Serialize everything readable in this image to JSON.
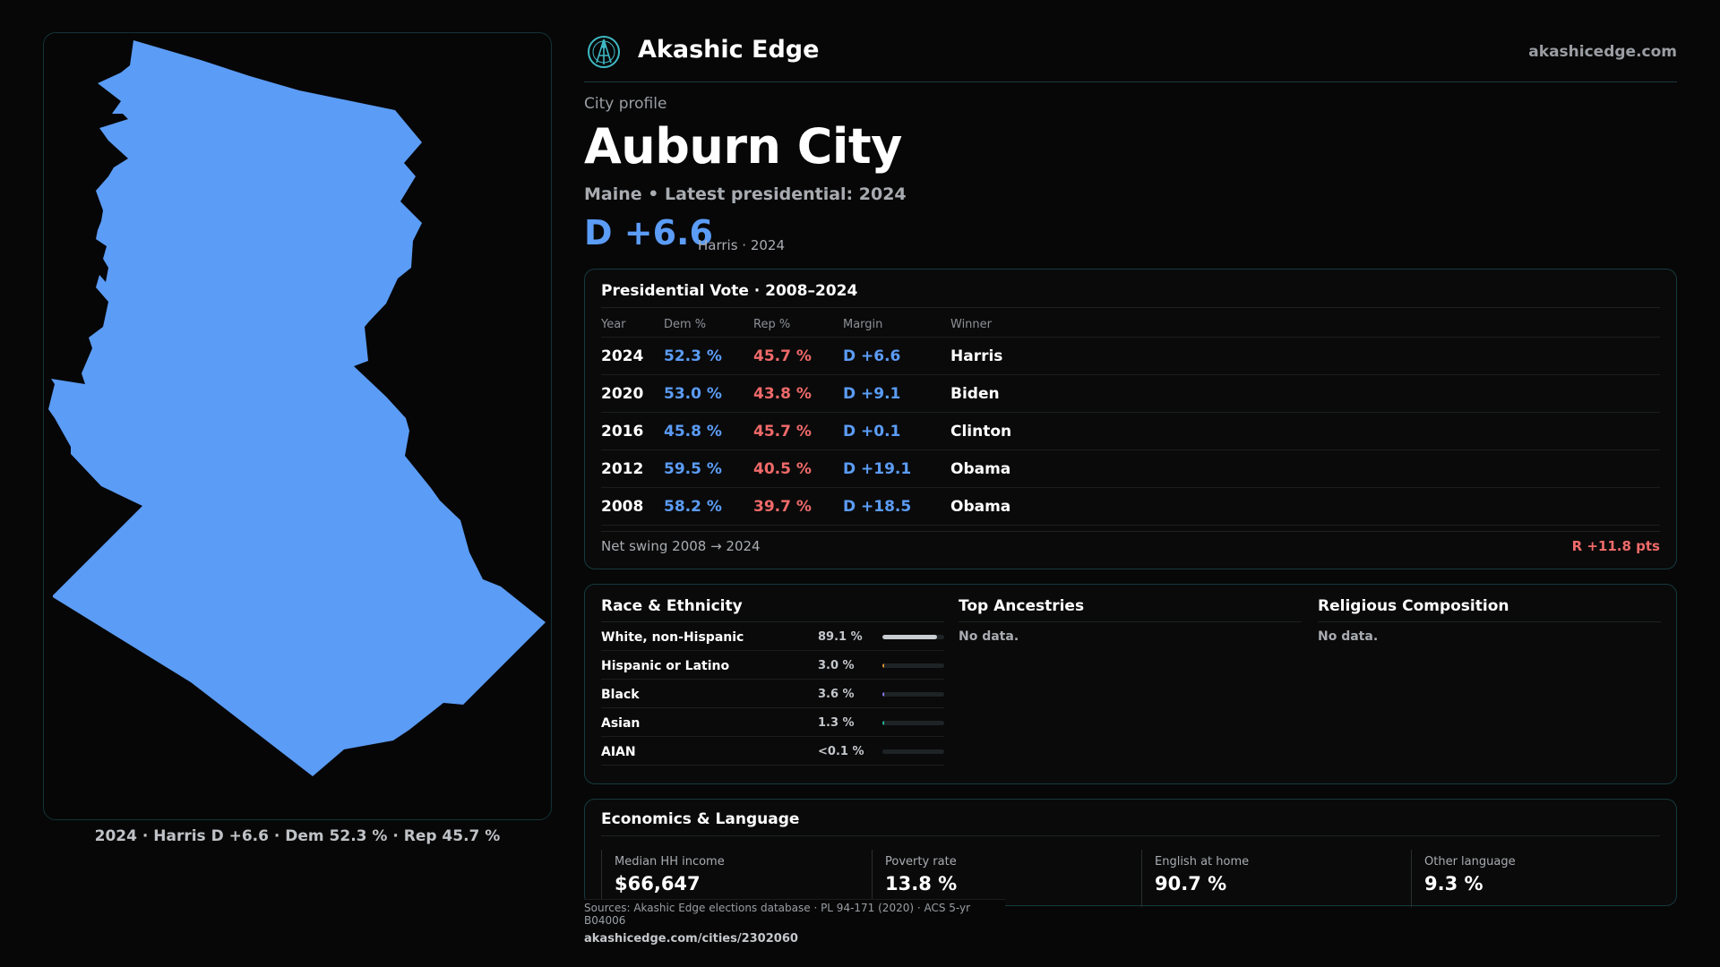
{
  "brand": {
    "name": "Akashic Edge",
    "domain": "akashicedge.com"
  },
  "map": {
    "fill_color": "#5b9cf6",
    "caption": "2024 · Harris D +6.6 · Dem 52.3 % · Rep 45.7 %"
  },
  "city": {
    "kicker": "City profile",
    "name": "Auburn City",
    "subtitle": "Maine • Latest presidential: 2024",
    "margin": "D +6.6",
    "margin_note": "Harris · 2024"
  },
  "presidential": {
    "title": "Presidential Vote · 2008–2024",
    "headers": {
      "year": "Year",
      "dem": "Dem %",
      "rep": "Rep %",
      "margin": "Margin",
      "winner": "Winner"
    },
    "rows": [
      {
        "year": "2024",
        "dem": "52.3 %",
        "rep": "45.7 %",
        "margin": "D +6.6",
        "winner": "Harris"
      },
      {
        "year": "2020",
        "dem": "53.0 %",
        "rep": "43.8 %",
        "margin": "D +9.1",
        "winner": "Biden"
      },
      {
        "year": "2016",
        "dem": "45.8 %",
        "rep": "45.7 %",
        "margin": "D +0.1",
        "winner": "Clinton"
      },
      {
        "year": "2012",
        "dem": "59.5 %",
        "rep": "40.5 %",
        "margin": "D +19.1",
        "winner": "Obama"
      },
      {
        "year": "2008",
        "dem": "58.2 %",
        "rep": "39.7 %",
        "margin": "D +18.5",
        "winner": "Obama"
      }
    ],
    "swing_label": "Net swing 2008 → 2024",
    "swing_value": "R +11.8 pts"
  },
  "race": {
    "title": "Race & Ethnicity",
    "rows": [
      {
        "name": "White, non-Hispanic",
        "value": "89.1 %",
        "share": 0.891,
        "color": "#c9ccd1"
      },
      {
        "name": "Hispanic or Latino",
        "value": "3.0 %",
        "share": 0.03,
        "color": "#e0962e"
      },
      {
        "name": "Black",
        "value": "3.6 %",
        "share": 0.036,
        "color": "#8a7cf0"
      },
      {
        "name": "Asian",
        "value": "1.3 %",
        "share": 0.013,
        "color": "#2bb7a3"
      },
      {
        "name": "AIAN",
        "value": "<0.1 %",
        "share": 0.0,
        "color": "#c9ccd1"
      }
    ]
  },
  "ancestries": {
    "title": "Top Ancestries",
    "empty": "No data."
  },
  "religion": {
    "title": "Religious Composition",
    "empty": "No data."
  },
  "economics": {
    "title": "Economics & Language",
    "stats": [
      {
        "label": "Median HH income",
        "value": "$66,647"
      },
      {
        "label": "Poverty rate",
        "value": "13.8 %"
      },
      {
        "label": "English at home",
        "value": "90.7 %"
      },
      {
        "label": "Other language",
        "value": "9.3 %"
      }
    ]
  },
  "footer": {
    "sources": "Sources: Akashic Edge elections database · PL 94-171 (2020) · ACS 5-yr B04006",
    "url": "akashicedge.com/cities/2302060"
  }
}
